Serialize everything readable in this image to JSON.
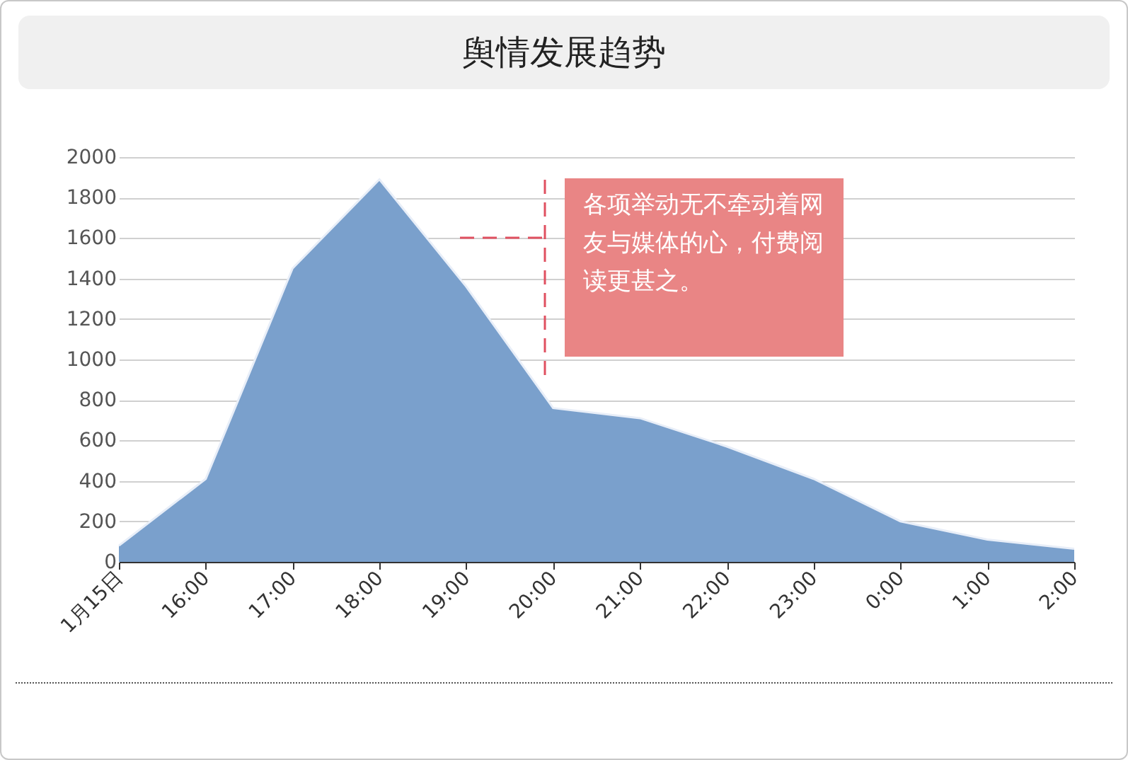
{
  "chart_data": {
    "type": "area",
    "title": "舆情发展趋势",
    "categories": [
      "1月15日",
      "16:00",
      "17:00",
      "18:00",
      "19:00",
      "20:00",
      "21:00",
      "22:00",
      "23:00",
      "0:00",
      "1:00",
      "2:00"
    ],
    "values": [
      80,
      410,
      1450,
      1890,
      1360,
      760,
      710,
      570,
      410,
      200,
      110,
      65
    ],
    "color": "#7aa0cc",
    "ylim": [
      0,
      2000
    ],
    "yticks": [
      0,
      200,
      400,
      600,
      800,
      1000,
      1200,
      1400,
      1600,
      1800,
      2000
    ],
    "grid": "y",
    "annotations": [
      "各项举动无不牵动着网友与媒体的心，付费阅读更甚之。"
    ]
  }
}
